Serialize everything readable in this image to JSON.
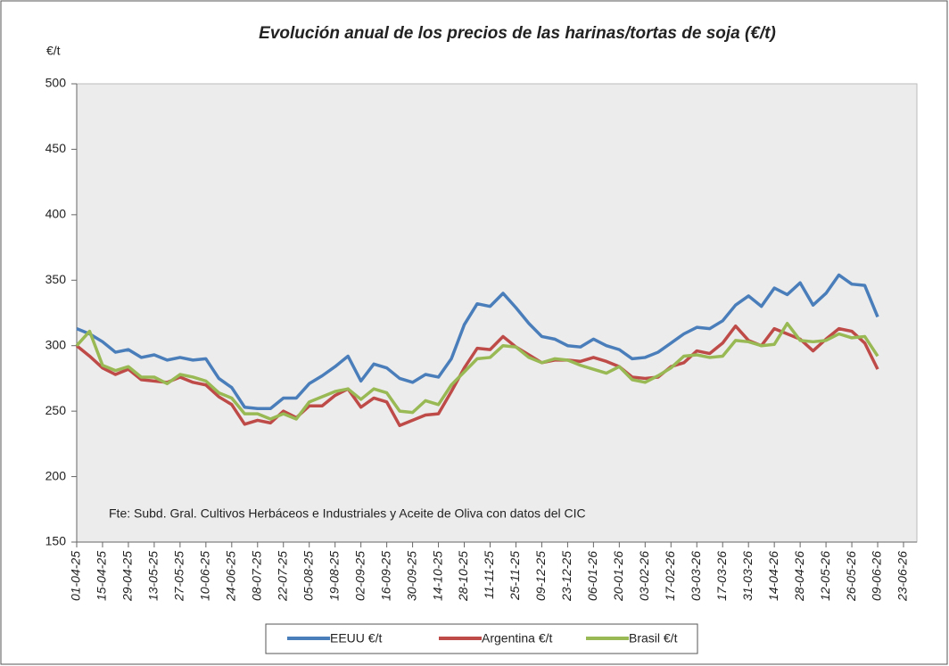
{
  "chart_data": {
    "type": "line",
    "title": "Evolución anual de los precios de las harinas/tortas de soja (€/t)",
    "y_label": "€/t",
    "annotation": "Fte: Subd. Gral. Cultivos Herbáceos e Industriales y Aceite de Oliva con datos del CIC",
    "categories": [
      "01-04-25",
      null,
      "15-04-25",
      null,
      "29-04-25",
      null,
      "13-05-25",
      null,
      "27-05-25",
      null,
      "10-06-25",
      null,
      "24-06-25",
      null,
      "08-07-25",
      null,
      "22-07-25",
      null,
      "05-08-25",
      null,
      "19-08-25",
      null,
      "02-09-25",
      null,
      "16-09-25",
      null,
      "30-09-25",
      null,
      "14-10-25",
      null,
      "28-10-25",
      null,
      "11-11-25",
      null,
      "25-11-25",
      null,
      "09-12-25",
      null,
      "23-12-25",
      null,
      "06-01-26",
      null,
      "20-01-26",
      null,
      "03-02-26",
      null,
      "17-02-26",
      null,
      "03-03-26",
      null,
      "17-03-26",
      null,
      "31-03-26",
      null,
      "14-04-26",
      null,
      "28-04-26",
      null,
      "12-05-26",
      null,
      "26-05-26",
      null,
      "09-06-26",
      null,
      "23-06-26"
    ],
    "series": [
      {
        "name": "EEUU €/t",
        "color": "#4a7ebb",
        "values": [
          313,
          309,
          303,
          295,
          297,
          291,
          293,
          289,
          291,
          289,
          290,
          275,
          268,
          253,
          252,
          252,
          260,
          260,
          271,
          277,
          284,
          292,
          273,
          286,
          283,
          275,
          272,
          278,
          276,
          290,
          316,
          332,
          330,
          340,
          329,
          317,
          307,
          305,
          300,
          299,
          305,
          300,
          297,
          290,
          291,
          295,
          302,
          309,
          314,
          313,
          319,
          331,
          338,
          330,
          344,
          339,
          348,
          331,
          340,
          354,
          347,
          346,
          322,
          null,
          null
        ]
      },
      {
        "name": "Argentina €/t",
        "color": "#be4b48",
        "values": [
          300,
          292,
          283,
          278,
          282,
          274,
          273,
          272,
          276,
          272,
          270,
          261,
          255,
          240,
          243,
          241,
          250,
          245,
          254,
          254,
          262,
          267,
          253,
          260,
          257,
          239,
          243,
          247,
          248,
          265,
          283,
          298,
          297,
          307,
          299,
          293,
          287,
          289,
          289,
          288,
          291,
          288,
          284,
          276,
          275,
          276,
          284,
          287,
          296,
          294,
          302,
          315,
          304,
          300,
          313,
          309,
          305,
          296,
          305,
          313,
          311,
          302,
          282,
          null,
          null
        ]
      },
      {
        "name": "Brasil €/t",
        "color": "#98b954",
        "values": [
          300,
          311,
          285,
          281,
          284,
          276,
          276,
          271,
          278,
          276,
          273,
          264,
          260,
          248,
          248,
          244,
          248,
          244,
          257,
          261,
          265,
          267,
          259,
          267,
          264,
          250,
          249,
          258,
          255,
          270,
          280,
          290,
          291,
          300,
          299,
          291,
          287,
          290,
          289,
          285,
          282,
          279,
          284,
          274,
          272,
          277,
          283,
          292,
          293,
          291,
          292,
          304,
          303,
          300,
          301,
          317,
          304,
          303,
          304,
          309,
          306,
          307,
          292,
          null,
          null
        ]
      }
    ],
    "ylim": [
      150,
      500
    ],
    "yticks": [
      150,
      200,
      250,
      300,
      350,
      400,
      450,
      500
    ],
    "grid": false,
    "legend": "bottom"
  }
}
